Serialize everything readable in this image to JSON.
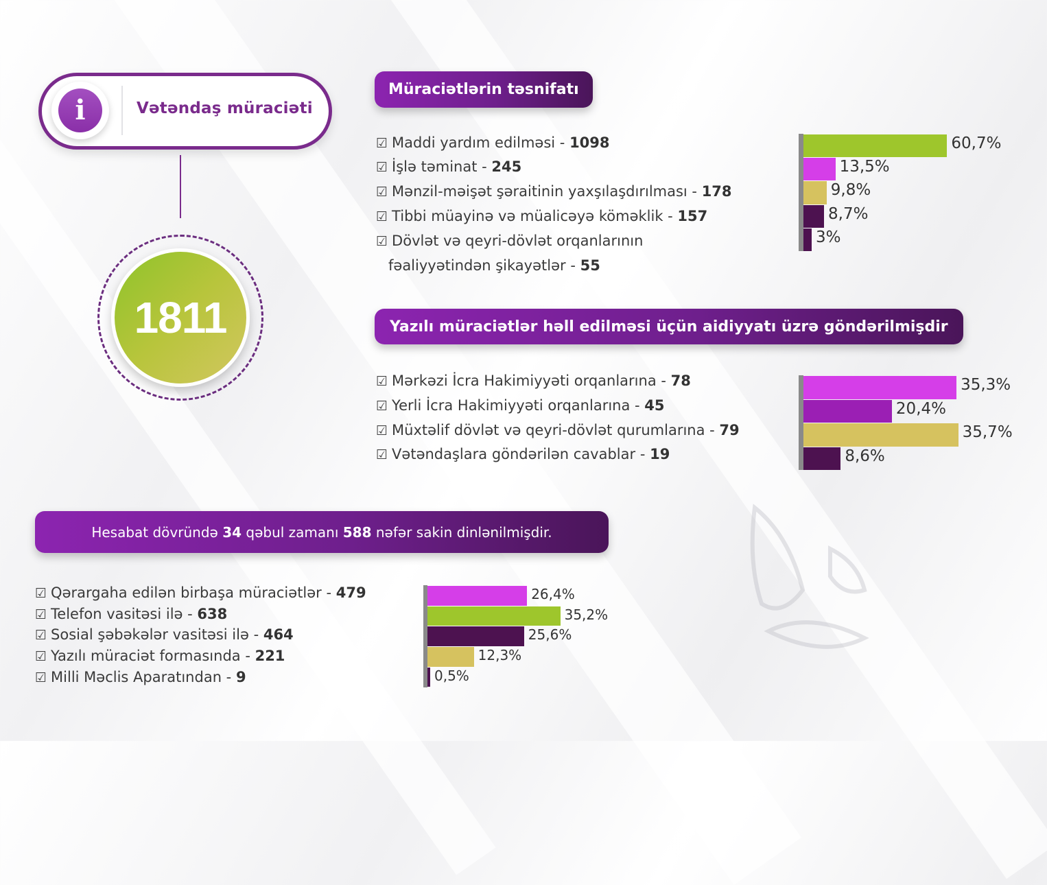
{
  "header": {
    "icon": "info-icon",
    "icon_glyph": "i",
    "title": "Vətəndaş müraciəti",
    "total": "1811"
  },
  "colors": {
    "green": "#9ec62c",
    "magenta": "#d53ee8",
    "tan": "#d6c25f",
    "dark_purple": "#4d1250",
    "purple": "#9b1fb4",
    "accent": "#7a2b8c"
  },
  "section1": {
    "title": "Müraciətlərin təsnifatı",
    "items": [
      {
        "label": "Maddi yardım edilməsi - ",
        "value": "1098"
      },
      {
        "label": "İşlə təminat - ",
        "value": "245"
      },
      {
        "label": "Mənzil-məişət şəraitinin yaxşılaşdırılması -  ",
        "value": "178"
      },
      {
        "label": "Tibbi müayinə və müalicəyə köməklik -  ",
        "value": "157"
      },
      {
        "label": "Dövlət və qeyri-dövlət orqanlarının",
        "value": ""
      },
      {
        "label": "fəaliyyətindən şikayətlər - ",
        "value": "55"
      }
    ]
  },
  "section2": {
    "title": "Yazılı müraciətlər həll edilməsi üçün aidiyyatı üzrə göndərilmişdir",
    "items": [
      {
        "label": "Mərkəzi İcra Hakimiyyəti orqanlarına - ",
        "value": "78"
      },
      {
        "label": "Yerli İcra Hakimiyyəti orqanlarına - ",
        "value": "45"
      },
      {
        "label": "Müxtəlif dövlət və qeyri-dövlət qurumlarına - ",
        "value": "79"
      },
      {
        "label": "Vətəndaşlara göndərilən cavablar - ",
        "value": "19"
      }
    ]
  },
  "section3": {
    "banner_pre": "Hesabat dövründə ",
    "banner_num1": "34",
    "banner_mid": " qəbul zamanı ",
    "banner_num2": "588",
    "banner_post": " nəfər sakin dinlənilmişdir.",
    "items": [
      {
        "label": "Qərargaha edilən birbaşa müraciətlər - ",
        "value": "479"
      },
      {
        "label": "Telefon vasitəsi ilə - ",
        "value": "638"
      },
      {
        "label": "Sosial şəbəkələr vasitəsi ilə - ",
        "value": "464"
      },
      {
        "label": "Yazılı müraciət formasında - ",
        "value": "221"
      },
      {
        "label": "Milli Məclis Aparatından - ",
        "value": "9"
      }
    ]
  },
  "chart_data": [
    {
      "type": "bar",
      "orientation": "horizontal",
      "categories": [
        "Maddi yardım edilməsi",
        "İşlə təminat",
        "Mənzil-məişət şəraitinin yaxşılaşdırılması",
        "Tibbi müayinə və müalicəyə köməklik",
        "Dövlət və qeyri-dövlət orqanlarının fəaliyyətindən şikayətlər"
      ],
      "values": [
        60.7,
        13.5,
        9.8,
        8.7,
        3
      ],
      "labels": [
        "60,7%",
        "13,5%",
        "9,8%",
        "8,7%",
        "3%"
      ],
      "colors": [
        "#9ec62c",
        "#d53ee8",
        "#d6c25f",
        "#4d1250",
        "#4d1250"
      ]
    },
    {
      "type": "bar",
      "orientation": "horizontal",
      "categories": [
        "Mərkəzi İcra Hakimiyyəti orqanlarına",
        "Yerli İcra Hakimiyyəti orqanlarına",
        "Müxtəlif dövlət və qeyri-dövlət qurumlarına",
        "Vətəndaşlara göndərilən cavablar"
      ],
      "values": [
        35.3,
        20.4,
        35.7,
        8.6
      ],
      "labels": [
        "35,3%",
        "20,4%",
        "35,7%",
        "8,6%"
      ],
      "colors": [
        "#d53ee8",
        "#9b1fb4",
        "#d6c25f",
        "#4d1250"
      ]
    },
    {
      "type": "bar",
      "orientation": "horizontal",
      "categories": [
        "Qərargaha edilən birbaşa müraciətlər",
        "Telefon vasitəsi ilə",
        "Sosial şəbəkələr vasitəsi ilə",
        "Yazılı müraciət formasında",
        "Milli Məclis Aparatından"
      ],
      "values": [
        26.4,
        35.2,
        25.6,
        12.3,
        0.5
      ],
      "labels": [
        "26,4%",
        "35,2%",
        "25,6%",
        "12,3%",
        "0,5%"
      ],
      "colors": [
        "#d53ee8",
        "#9ec62c",
        "#4d1250",
        "#d6c25f",
        "#4d1250"
      ]
    }
  ]
}
